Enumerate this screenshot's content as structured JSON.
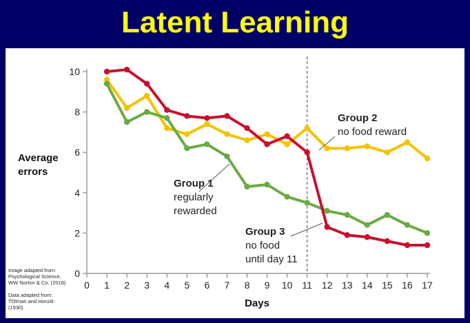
{
  "title": "Latent Learning",
  "credits": {
    "image_lines": [
      "Image adapted from:",
      "Psychological Science,",
      "WW Norton & Co. (2018)"
    ],
    "data_lines": [
      "Data adapted from:",
      "TOlman and Honzik",
      "(1930)"
    ]
  },
  "colors": {
    "background": "#000066",
    "title": "#ffff00",
    "axis": "#888888",
    "group1": "#6aaa45",
    "group2": "#f5c200",
    "group3": "#c8102e"
  },
  "chart_data": {
    "type": "line",
    "xlabel": "Days",
    "ylabel_lines": [
      "Average",
      "errors"
    ],
    "xlim": [
      0,
      17
    ],
    "ylim": [
      0,
      10
    ],
    "x_ticks": [
      0,
      1,
      2,
      3,
      4,
      5,
      6,
      7,
      8,
      9,
      10,
      11,
      12,
      13,
      14,
      15,
      16,
      17
    ],
    "y_ticks": [
      0,
      2,
      4,
      6,
      8,
      10
    ],
    "grid": false,
    "x": [
      1,
      2,
      3,
      4,
      5,
      6,
      7,
      8,
      9,
      10,
      11,
      12,
      13,
      14,
      15,
      16,
      17
    ],
    "series": [
      {
        "name": "Group 1",
        "color_key": "group1",
        "values": [
          9.4,
          7.5,
          8.0,
          7.7,
          6.2,
          6.4,
          5.8,
          4.3,
          4.4,
          3.8,
          3.5,
          3.1,
          2.9,
          2.4,
          2.9,
          2.4,
          2.0
        ],
        "label_lines": [
          {
            "text": "Group 1",
            "bold": true
          },
          {
            "text": "regularly",
            "bold": false
          },
          {
            "text": "rewarded",
            "bold": false
          }
        ]
      },
      {
        "name": "Group 2",
        "color_key": "group2",
        "values": [
          9.6,
          8.2,
          8.8,
          7.2,
          6.9,
          7.4,
          6.9,
          6.6,
          6.9,
          6.4,
          7.2,
          6.2,
          6.2,
          6.3,
          6.0,
          6.5,
          5.7
        ],
        "label_lines": [
          {
            "text": "Group 2",
            "bold": true
          },
          {
            "text": "no food reward",
            "bold": false
          }
        ]
      },
      {
        "name": "Group 3",
        "color_key": "group3",
        "values": [
          10.0,
          10.1,
          9.4,
          8.1,
          7.8,
          7.7,
          7.8,
          7.2,
          6.4,
          6.8,
          6.0,
          2.3,
          1.9,
          1.8,
          1.6,
          1.4,
          1.4
        ],
        "label_lines": [
          {
            "text": "Group 3",
            "bold": true
          },
          {
            "text": "no food",
            "bold": false
          },
          {
            "text": "until day 11",
            "bold": false
          }
        ]
      }
    ],
    "reference_line": {
      "x": 11,
      "style": "dashed"
    }
  }
}
